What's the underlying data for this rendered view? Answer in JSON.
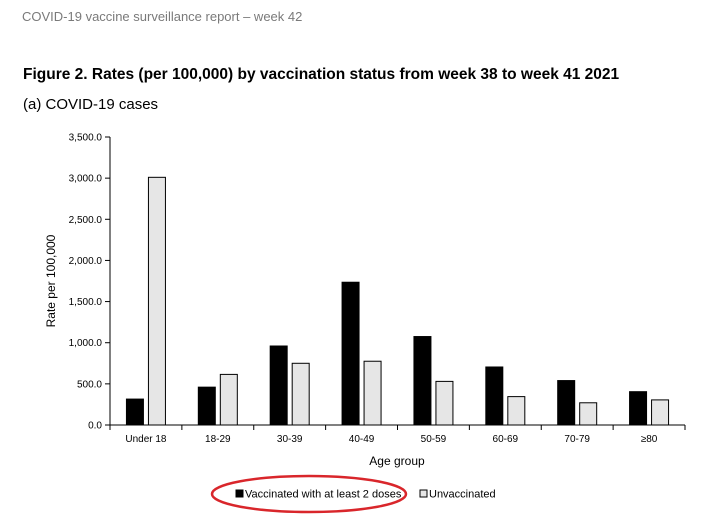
{
  "header": {
    "text": "COVID-19 vaccine surveillance report – week 42"
  },
  "figure": {
    "title": "Figure 2. Rates (per 100,000) by vaccination status from week 38 to week 41 2021",
    "subtitle": "(a) COVID-19 cases"
  },
  "colors": {
    "vaccinated": "#000000",
    "unvaccinated": "#e6e6e6",
    "annotation": "#d9262b"
  },
  "chart_data": {
    "type": "bar",
    "title": "(a) COVID-19 cases",
    "xlabel": "Age group",
    "ylabel": "Rate per 100,000",
    "ylim": [
      0,
      3500
    ],
    "yticks": [
      "0.0",
      "500.0",
      "1,000.0",
      "1,500.0",
      "2,000.0",
      "2,500.0",
      "3,000.0",
      "3,500.0"
    ],
    "ytick_values": [
      0,
      500,
      1000,
      1500,
      2000,
      2500,
      3000,
      3500
    ],
    "categories": [
      "Under 18",
      "18-29",
      "30-39",
      "40-49",
      "50-59",
      "60-69",
      "70-79",
      "≥80"
    ],
    "series": [
      {
        "name": "Vaccinated with at least 2 doses",
        "values": [
          315,
          460,
          960,
          1735,
          1075,
          705,
          540,
          405
        ]
      },
      {
        "name": "Unvaccinated",
        "values": [
          3010,
          615,
          750,
          775,
          530,
          345,
          270,
          305
        ]
      }
    ],
    "legend_position": "bottom",
    "grid": false
  }
}
